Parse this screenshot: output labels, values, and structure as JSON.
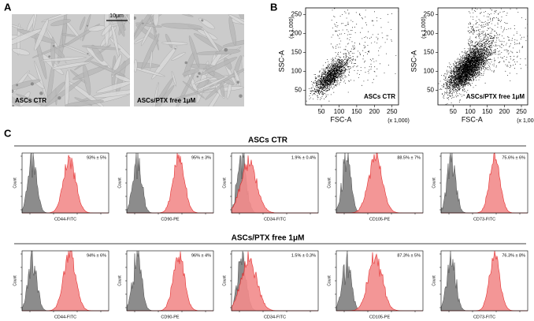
{
  "panel_a": {
    "label": "A",
    "scale_bar": "10μm",
    "images": [
      {
        "caption": "ASCs CTR"
      },
      {
        "caption": "ASCs/PTX free 1μM"
      }
    ]
  },
  "panel_b": {
    "label": "B",
    "plots": [
      {
        "y_label": "SSC-A",
        "x_label": "FSC-A",
        "y_unit": "(x 1,000)",
        "x_unit": "(x 1,000)",
        "yticks": [
          "250",
          "200",
          "150",
          "100",
          "50"
        ],
        "xticks": [
          "50",
          "100",
          "150",
          "200",
          "250"
        ],
        "caption": "ASCs CTR"
      },
      {
        "y_label": "SSC-A",
        "x_label": "FSC-A",
        "y_unit": "(x 1,000)",
        "x_unit": "(x 1,000)",
        "yticks": [
          "250",
          "200",
          "150",
          "100",
          "50"
        ],
        "xticks": [
          "50",
          "100",
          "150",
          "200",
          "250"
        ],
        "caption": "ASCs/PTX free 1μM"
      }
    ]
  },
  "panel_c": {
    "label": "C",
    "y_label": "Count",
    "groups": [
      {
        "title": "ASCs CTR",
        "histograms": [
          {
            "marker": "CD44-FITC",
            "percent": "93% ± 5%"
          },
          {
            "marker": "CD90-PE",
            "percent": "95% ± 3%"
          },
          {
            "marker": "CD34-FITC",
            "percent": "1.9% ± 0.4%"
          },
          {
            "marker": "CD105-PE",
            "percent": "88.5% ± 7%"
          },
          {
            "marker": "CD73-FITC",
            "percent": "75.6% ± 6%"
          }
        ]
      },
      {
        "title": "ASCs/PTX free 1μM",
        "histograms": [
          {
            "marker": "CD44-FITC",
            "percent": "94% ± 6%"
          },
          {
            "marker": "CD90-PE",
            "percent": "96% ± 4%"
          },
          {
            "marker": "CD34-FITC",
            "percent": "1.5% ± 0.3%"
          },
          {
            "marker": "CD105-PE",
            "percent": "87.3% ± 5%"
          },
          {
            "marker": "CD73-FITC",
            "percent": "76.3% ± 8%"
          }
        ]
      }
    ]
  }
}
